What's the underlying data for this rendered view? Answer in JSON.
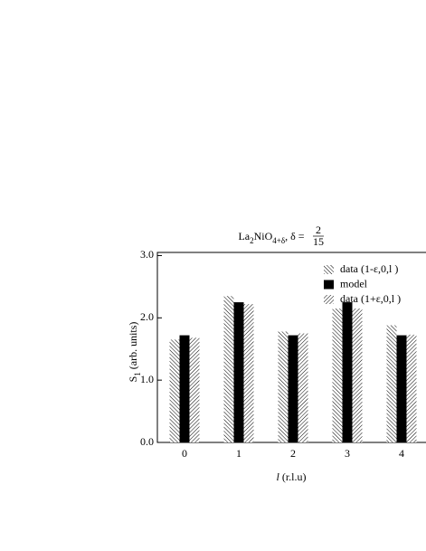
{
  "chart_data": {
    "type": "bar",
    "title": {
      "parts": [
        {
          "text": "La"
        },
        {
          "text": "2",
          "sub": true
        },
        {
          "text": "NiO"
        },
        {
          "text": "4+δ",
          "sub": true
        },
        {
          "text": ", δ = "
        }
      ],
      "fraction": {
        "numerator": "2",
        "denominator": "15"
      }
    },
    "ylabel": {
      "parts": [
        {
          "text": "S"
        },
        {
          "text": "1",
          "sub": true
        },
        {
          "text": " (arb. units)"
        }
      ]
    },
    "xlabel": {
      "parts": [
        {
          "text": "l",
          "italic": true
        },
        {
          "text": " (r.l.u)"
        }
      ]
    },
    "x": [
      0,
      1,
      2,
      3,
      4
    ],
    "xlim": [
      -0.5,
      4.5
    ],
    "xticks": [
      0,
      1,
      2,
      3,
      4
    ],
    "ylim": [
      0,
      3.05
    ],
    "yticks": [
      {
        "value": 0,
        "label": "0.0"
      },
      {
        "value": 1,
        "label": "1.0"
      },
      {
        "value": 2,
        "label": "2.0"
      },
      {
        "value": 3,
        "label": "3.0"
      }
    ],
    "legend": "upper right",
    "series": [
      {
        "name": "data (1-ε,0,l )",
        "color": "#000000",
        "hatch": "backslash",
        "values": [
          1.65,
          2.35,
          1.78,
          2.15,
          1.88
        ]
      },
      {
        "name": "model",
        "color": "#000000",
        "hatch": "solid",
        "values": [
          1.72,
          2.25,
          1.72,
          2.25,
          1.72
        ]
      },
      {
        "name": "data (1+ε,0,l )",
        "color": "#000000",
        "hatch": "slash",
        "values": [
          1.68,
          2.22,
          1.75,
          2.15,
          1.73
        ]
      }
    ]
  }
}
